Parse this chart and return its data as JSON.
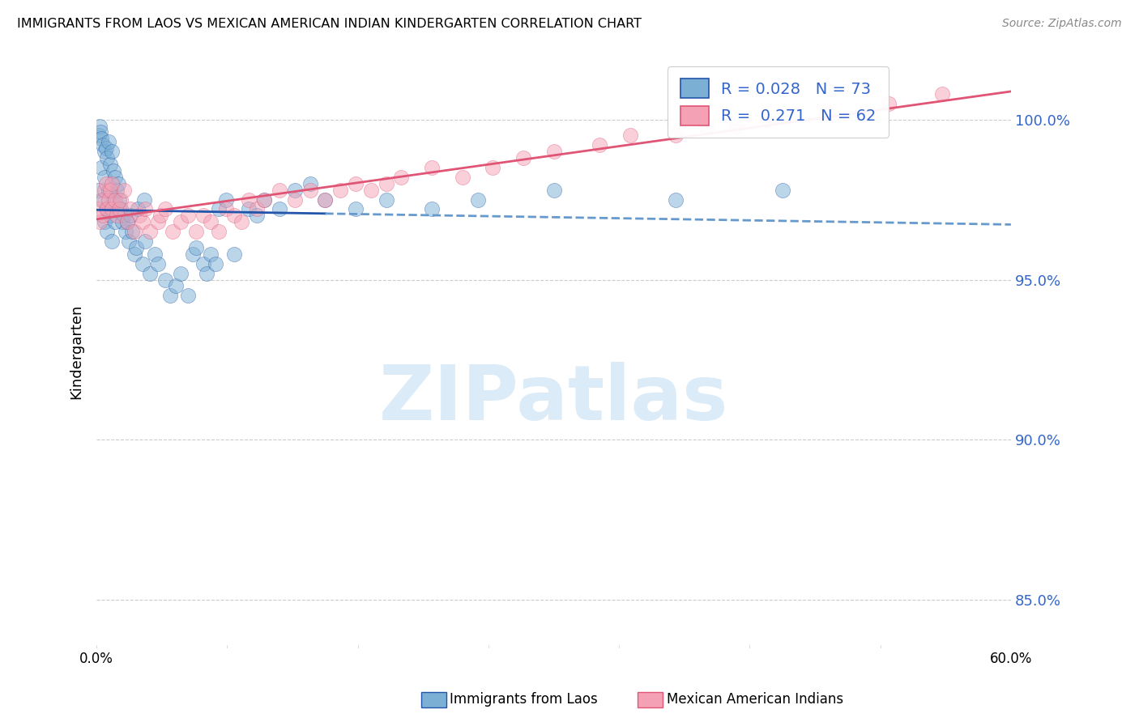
{
  "title": "IMMIGRANTS FROM LAOS VS MEXICAN AMERICAN INDIAN KINDERGARTEN CORRELATION CHART",
  "source": "Source: ZipAtlas.com",
  "ylabel": "Kindergarten",
  "yticks": [
    85.0,
    90.0,
    95.0,
    100.0
  ],
  "ytick_labels": [
    "85.0%",
    "90.0%",
    "95.0%",
    "100.0%"
  ],
  "xtick_labels": [
    "0.0%",
    "60.0%"
  ],
  "xrange": [
    0.0,
    60.0
  ],
  "yrange": [
    83.5,
    102.0
  ],
  "legend_r_blue": "0.028",
  "legend_n_blue": "73",
  "legend_r_pink": "0.271",
  "legend_n_pink": "62",
  "blue_color": "#7BAFD4",
  "pink_color": "#F4A0B5",
  "trend_blue_solid_color": "#2255AA",
  "trend_blue_dash_color": "#6699CC",
  "trend_pink_color": "#E05575",
  "watermark_text": "ZIPatlas",
  "label_blue": "Immigrants from Laos",
  "label_pink": "Mexican American Indians",
  "blue_scatter_x": [
    0.1,
    0.15,
    0.2,
    0.25,
    0.3,
    0.3,
    0.4,
    0.4,
    0.5,
    0.5,
    0.5,
    0.6,
    0.6,
    0.7,
    0.7,
    0.8,
    0.8,
    0.9,
    0.9,
    1.0,
    1.0,
    1.1,
    1.1,
    1.2,
    1.2,
    1.3,
    1.4,
    1.5,
    1.6,
    1.7,
    1.8,
    1.9,
    2.0,
    2.1,
    2.2,
    2.3,
    2.5,
    2.6,
    2.7,
    3.0,
    3.1,
    3.2,
    3.5,
    3.8,
    4.0,
    4.5,
    4.8,
    5.2,
    5.5,
    6.0,
    6.3,
    6.5,
    7.0,
    7.2,
    7.5,
    7.8,
    8.0,
    8.5,
    9.0,
    10.0,
    10.5,
    11.0,
    12.0,
    13.0,
    14.0,
    15.0,
    17.0,
    19.0,
    22.0,
    25.0,
    30.0,
    38.0,
    45.0
  ],
  "blue_scatter_y": [
    97.8,
    99.5,
    99.8,
    99.6,
    99.4,
    98.5,
    99.2,
    97.5,
    99.0,
    98.2,
    96.8,
    99.1,
    97.2,
    98.8,
    96.5,
    99.3,
    97.8,
    98.6,
    97.0,
    99.0,
    96.2,
    98.4,
    97.5,
    98.2,
    96.8,
    97.8,
    98.0,
    97.5,
    97.2,
    96.8,
    97.0,
    96.5,
    96.8,
    96.2,
    97.0,
    96.5,
    95.8,
    96.0,
    97.2,
    95.5,
    97.5,
    96.2,
    95.2,
    95.8,
    95.5,
    95.0,
    94.5,
    94.8,
    95.2,
    94.5,
    95.8,
    96.0,
    95.5,
    95.2,
    95.8,
    95.5,
    97.2,
    97.5,
    95.8,
    97.2,
    97.0,
    97.5,
    97.2,
    97.8,
    98.0,
    97.5,
    97.2,
    97.5,
    97.2,
    97.5,
    97.8,
    97.5,
    97.8
  ],
  "pink_scatter_x": [
    0.1,
    0.2,
    0.3,
    0.4,
    0.5,
    0.6,
    0.7,
    0.8,
    0.9,
    1.0,
    1.0,
    1.2,
    1.3,
    1.5,
    1.6,
    1.8,
    2.0,
    2.2,
    2.5,
    2.8,
    3.0,
    3.2,
    3.5,
    4.0,
    4.2,
    4.5,
    5.0,
    5.5,
    6.0,
    6.5,
    7.0,
    7.5,
    8.0,
    8.5,
    9.0,
    9.5,
    10.0,
    10.5,
    11.0,
    12.0,
    13.0,
    14.0,
    15.0,
    16.0,
    17.0,
    18.0,
    19.0,
    20.0,
    22.0,
    24.0,
    26.0,
    28.0,
    30.0,
    33.0,
    35.0,
    38.0,
    40.0,
    42.0,
    44.0,
    48.0,
    52.0,
    55.5
  ],
  "pink_scatter_y": [
    97.2,
    96.8,
    97.5,
    97.0,
    97.8,
    98.0,
    97.2,
    97.5,
    97.8,
    97.2,
    98.0,
    97.5,
    97.0,
    97.2,
    97.5,
    97.8,
    96.8,
    97.2,
    96.5,
    97.0,
    96.8,
    97.2,
    96.5,
    96.8,
    97.0,
    97.2,
    96.5,
    96.8,
    97.0,
    96.5,
    97.0,
    96.8,
    96.5,
    97.2,
    97.0,
    96.8,
    97.5,
    97.2,
    97.5,
    97.8,
    97.5,
    97.8,
    97.5,
    97.8,
    98.0,
    97.8,
    98.0,
    98.2,
    98.5,
    98.2,
    98.5,
    98.8,
    99.0,
    99.2,
    99.5,
    99.5,
    99.8,
    99.8,
    100.0,
    100.2,
    100.5,
    100.8
  ],
  "blue_solid_x_max": 15.0
}
